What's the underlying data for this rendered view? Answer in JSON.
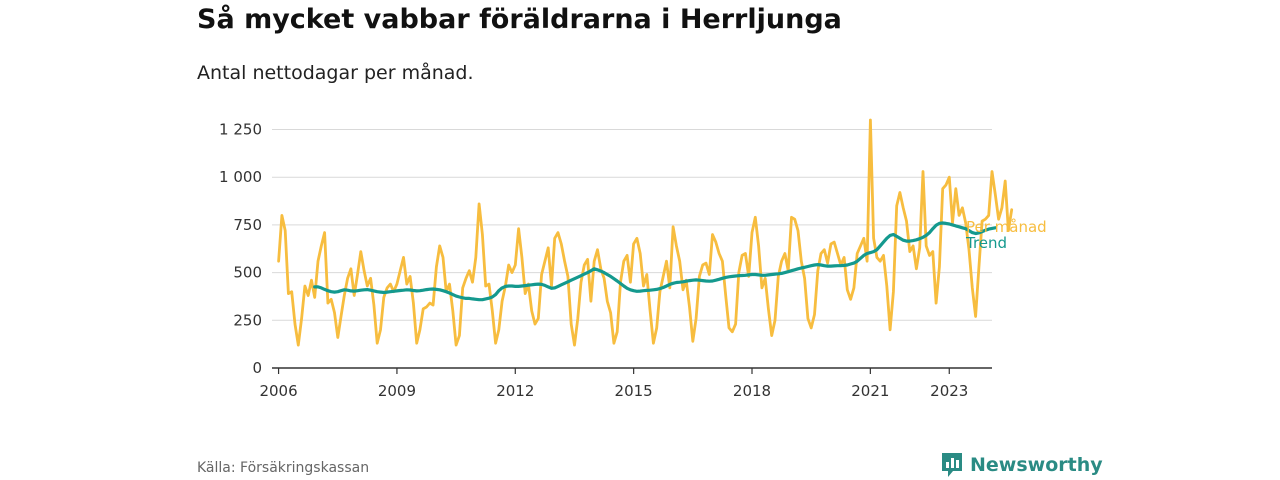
{
  "header": {
    "title": "Så mycket vabbar föräldrarna i Herrljunga",
    "subtitle": "Antal nettodagar per månad."
  },
  "footer": {
    "source": "Källa: Försäkringskassan",
    "brand": "Newsworthy",
    "brand_icon": "newsworthy-logo-icon"
  },
  "colors": {
    "monthly": "#f7bd3f",
    "trend": "#14998e",
    "grid": "#d9d9d9",
    "axis": "#333333",
    "brand": "#2a8b84"
  },
  "chart_data": {
    "type": "line",
    "title": "Så mycket vabbar föräldrarna i Herrljunga",
    "subtitle": "Antal nettodagar per månad.",
    "x_tick_labels": [
      "2006",
      "2009",
      "2012",
      "2015",
      "2018",
      "2021",
      "2023"
    ],
    "x_tick_years": [
      2006,
      2009,
      2012,
      2015,
      2018,
      2021,
      2023
    ],
    "xlim": [
      "2005-11",
      "2024-02"
    ],
    "y_ticks": [
      0,
      250,
      500,
      750,
      1000,
      1250
    ],
    "y_tick_labels": [
      "0",
      "250",
      "500",
      "750",
      "1 000",
      "1 250"
    ],
    "ylim": [
      0,
      1300
    ],
    "grid": true,
    "legend": "inline labels at right end of lines",
    "series": [
      {
        "name": "Per månad",
        "start": "2006-01",
        "frequency": "monthly",
        "values": [
          560,
          800,
          720,
          390,
          400,
          230,
          120,
          260,
          430,
          380,
          460,
          370,
          560,
          640,
          710,
          340,
          360,
          290,
          160,
          270,
          380,
          470,
          520,
          380,
          490,
          610,
          510,
          430,
          470,
          330,
          130,
          200,
          370,
          420,
          440,
          400,
          440,
          510,
          580,
          440,
          480,
          340,
          130,
          200,
          310,
          320,
          340,
          330,
          530,
          640,
          580,
          400,
          440,
          300,
          120,
          170,
          420,
          470,
          510,
          450,
          580,
          860,
          700,
          430,
          440,
          300,
          130,
          200,
          350,
          430,
          540,
          500,
          540,
          730,
          580,
          390,
          440,
          300,
          230,
          260,
          490,
          560,
          630,
          430,
          680,
          710,
          650,
          560,
          480,
          230,
          120,
          260,
          450,
          540,
          570,
          350,
          560,
          620,
          520,
          470,
          350,
          290,
          130,
          190,
          450,
          560,
          590,
          450,
          650,
          680,
          600,
          430,
          490,
          300,
          130,
          210,
          400,
          480,
          560,
          420,
          740,
          640,
          560,
          410,
          460,
          320,
          140,
          260,
          480,
          540,
          550,
          490,
          700,
          660,
          600,
          560,
          380,
          210,
          190,
          230,
          500,
          590,
          600,
          480,
          710,
          790,
          640,
          420,
          470,
          310,
          170,
          250,
          480,
          560,
          600,
          510,
          790,
          780,
          720,
          560,
          470,
          260,
          210,
          280,
          510,
          600,
          620,
          550,
          650,
          660,
          600,
          540,
          580,
          410,
          360,
          420,
          600,
          640,
          680,
          560,
          1300,
          680,
          580,
          560,
          590,
          430,
          200,
          400,
          850,
          920,
          840,
          770,
          610,
          640,
          520,
          630,
          1030,
          640,
          590,
          610,
          340,
          530,
          940,
          960,
          1000,
          760,
          940,
          800,
          840,
          760,
          620,
          420,
          270,
          520,
          770,
          780,
          800,
          1030,
          910,
          780,
          840,
          980,
          720,
          830
        ]
      },
      {
        "name": "Trend",
        "start": "2006-12",
        "frequency": "monthly",
        "values": [
          425,
          425,
          420,
          412,
          405,
          400,
          398,
          400,
          405,
          410,
          408,
          404,
          403,
          405,
          408,
          410,
          411,
          408,
          404,
          400,
          398,
          396,
          398,
          400,
          402,
          404,
          406,
          408,
          410,
          409,
          406,
          404,
          405,
          408,
          411,
          413,
          414,
          412,
          410,
          405,
          400,
          393,
          385,
          377,
          372,
          368,
          365,
          365,
          362,
          360,
          358,
          358,
          362,
          366,
          372,
          385,
          405,
          420,
          428,
          430,
          430,
          428,
          428,
          430,
          432,
          434,
          436,
          438,
          440,
          438,
          433,
          425,
          418,
          420,
          428,
          436,
          444,
          452,
          460,
          468,
          476,
          484,
          492,
          500,
          510,
          520,
          515,
          508,
          500,
          490,
          480,
          468,
          456,
          443,
          430,
          418,
          410,
          405,
          402,
          403,
          405,
          407,
          408,
          410,
          412,
          416,
          422,
          430,
          438,
          444,
          448,
          450,
          452,
          455,
          458,
          460,
          462,
          460,
          458,
          456,
          455,
          456,
          460,
          465,
          470,
          475,
          478,
          480,
          482,
          484,
          485,
          486,
          488,
          490,
          490,
          488,
          486,
          486,
          488,
          490,
          492,
          494,
          496,
          500,
          505,
          510,
          515,
          520,
          524,
          528,
          532,
          536,
          540,
          542,
          540,
          536,
          534,
          534,
          535,
          536,
          537,
          538,
          540,
          545,
          550,
          560,
          575,
          590,
          600,
          605,
          610,
          620,
          640,
          660,
          680,
          695,
          700,
          690,
          680,
          670,
          665,
          665,
          668,
          672,
          678,
          685,
          695,
          710,
          730,
          748,
          758,
          760,
          758,
          755,
          750,
          745,
          740,
          735,
          730,
          720,
          710,
          705,
          708,
          715,
          722,
          728,
          732,
          735
        ]
      }
    ]
  }
}
